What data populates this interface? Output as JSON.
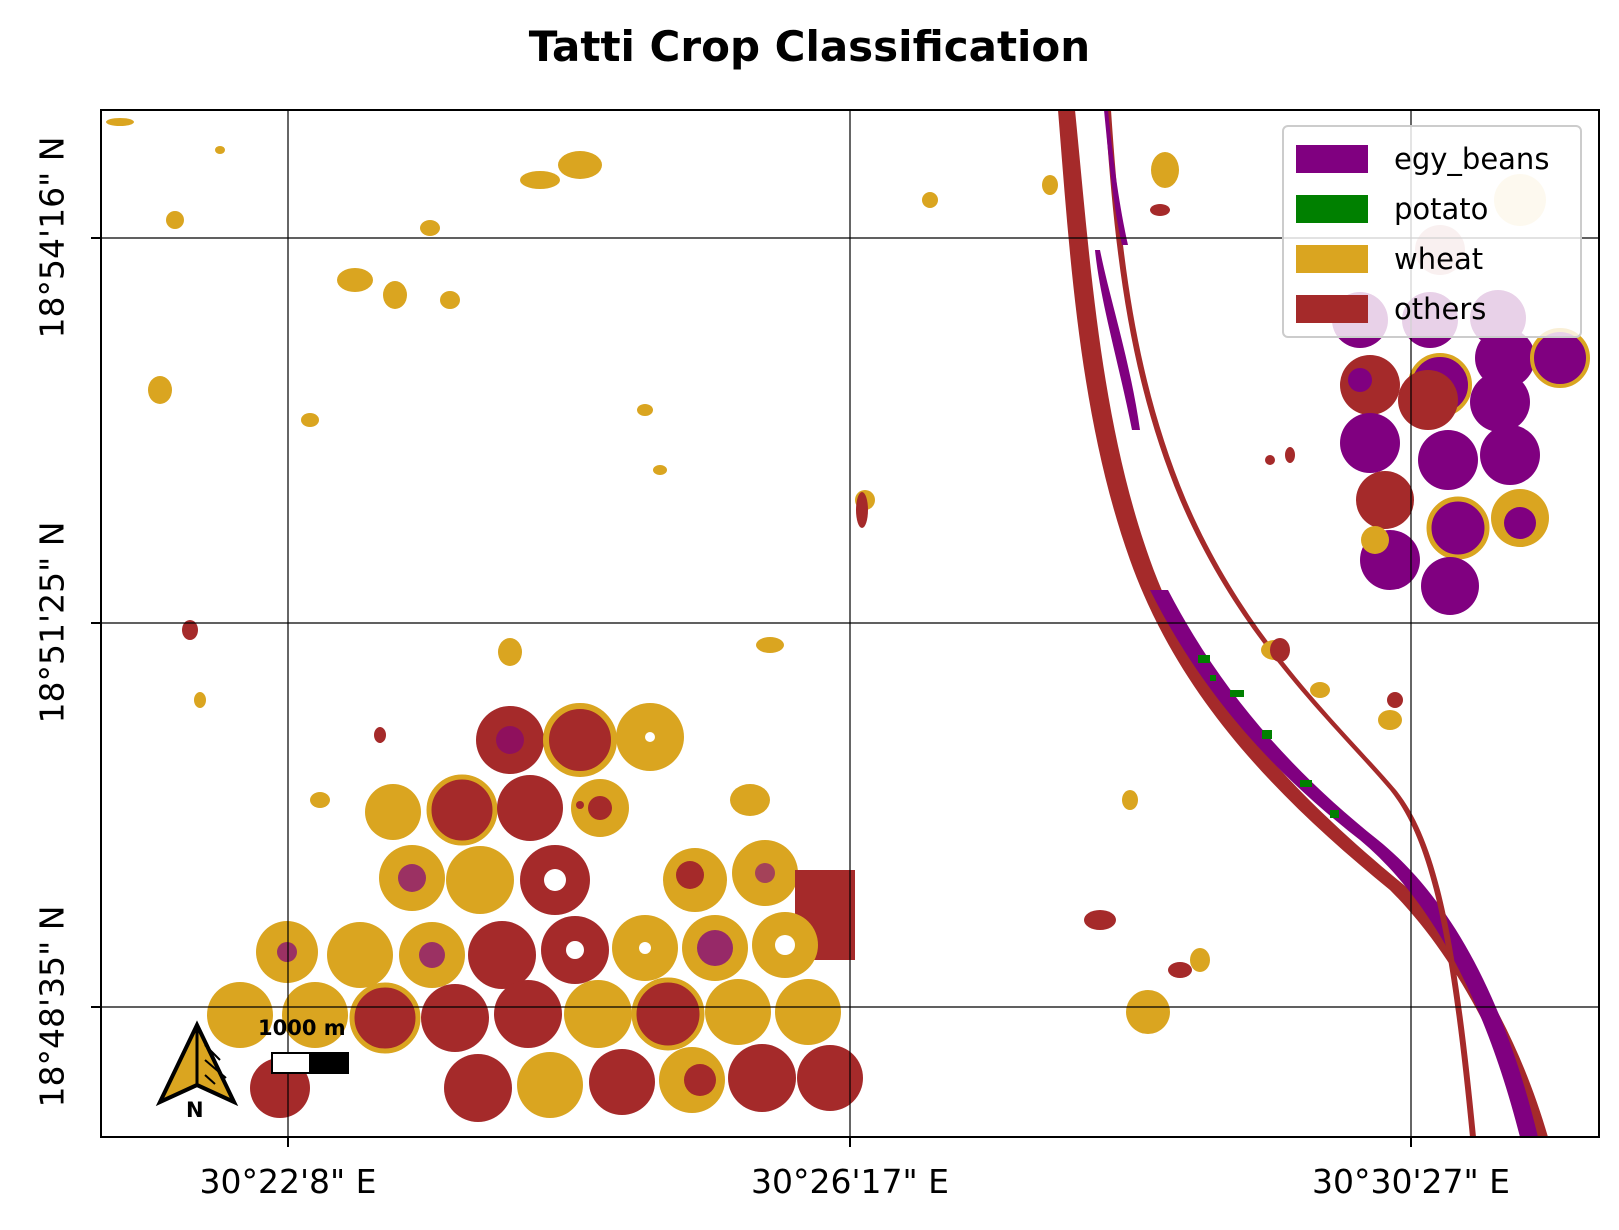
{
  "title": "Tatti Crop Classification",
  "x_ticks": [
    "30°22'8\" E",
    "30°26'17\" E",
    "30°30'27\" E"
  ],
  "y_ticks": [
    "18°54'16\" N",
    "18°51'25\" N",
    "18°48'35\" N"
  ],
  "legend": [
    {
      "label": "egy_beans",
      "color": "#800080"
    },
    {
      "label": "potato",
      "color": "#008000"
    },
    {
      "label": "wheat",
      "color": "#DAA520"
    },
    {
      "label": "others",
      "color": "#A52A2A"
    }
  ],
  "scale_bar": {
    "label": "1000 m"
  },
  "north_arrow": {
    "label": "N",
    "icon": "north-arrow-icon"
  },
  "colors": {
    "wheat": "#DAA520",
    "others": "#A52A2A",
    "egy_beans": "#800080",
    "potato": "#008000"
  }
}
